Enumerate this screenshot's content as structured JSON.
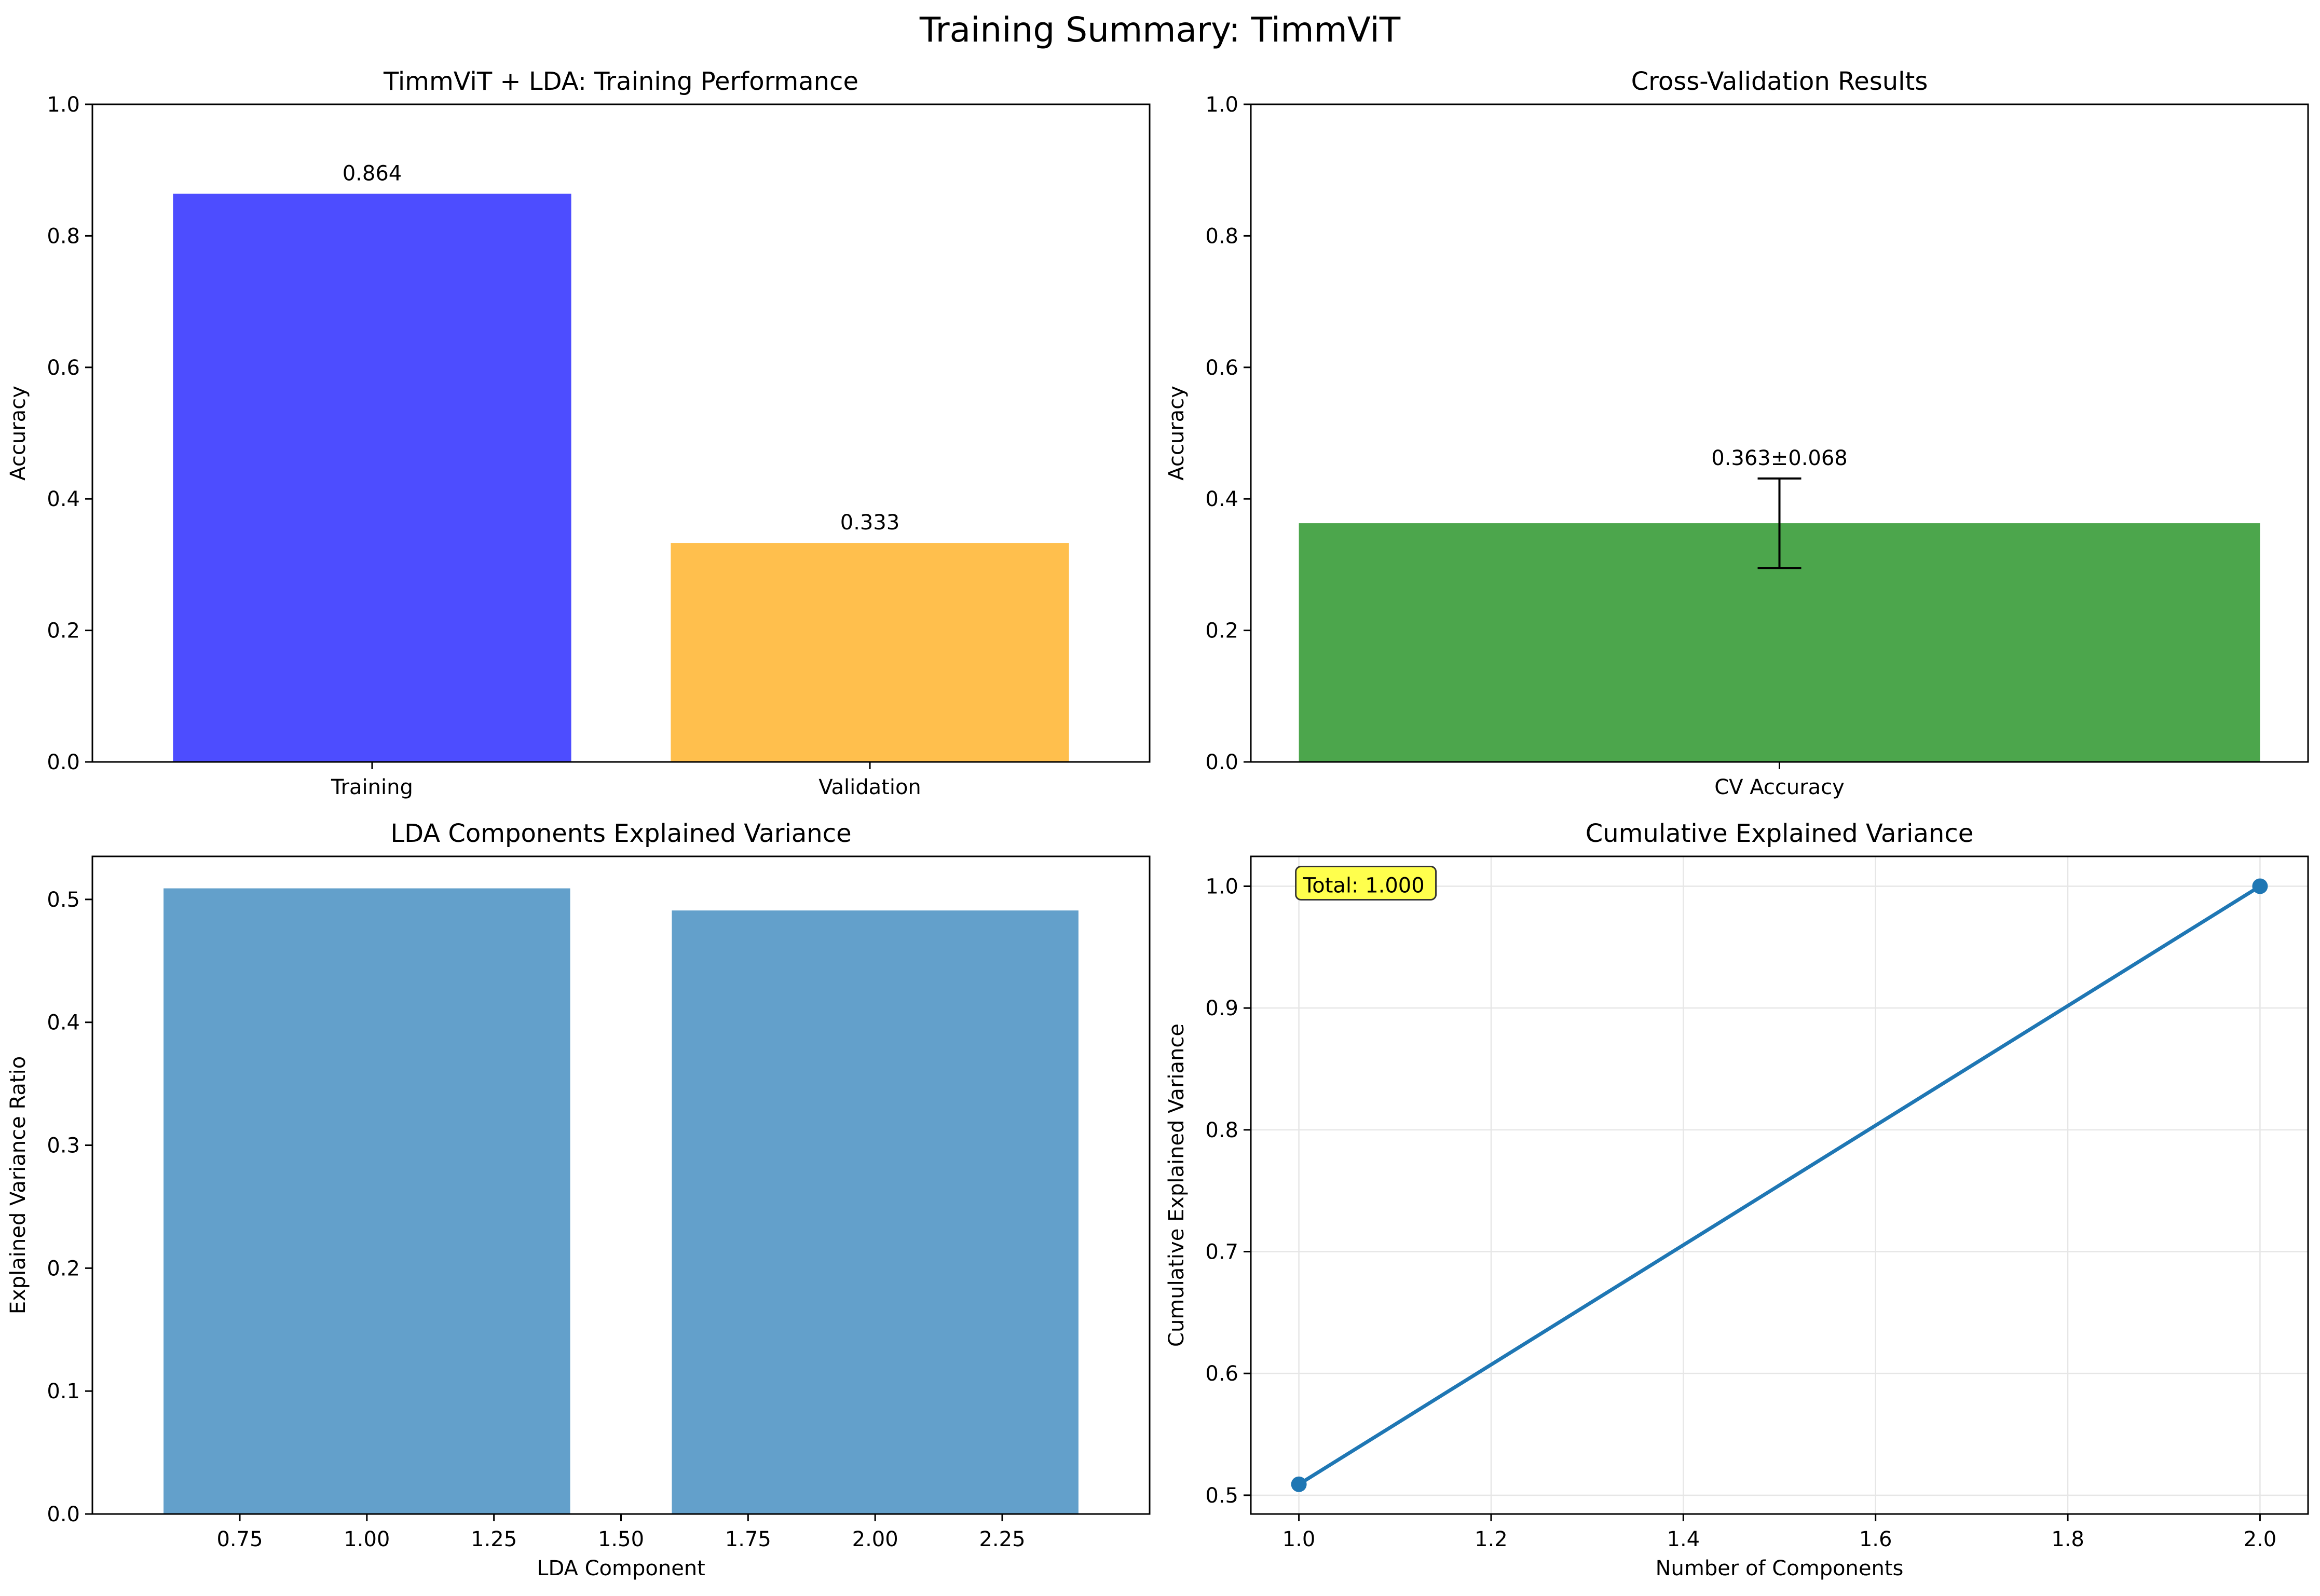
{
  "figure": {
    "title": "Training Summary: TimmViT"
  },
  "chart_data": [
    {
      "type": "bar",
      "title": "TimmViT + LDA: Training Performance",
      "xlabel": "",
      "ylabel": "Accuracy",
      "categories": [
        "Training",
        "Validation"
      ],
      "values": [
        0.864,
        0.333
      ],
      "colors": [
        "#4d4dff",
        "#ffbf4d"
      ],
      "data_labels": [
        "0.864",
        "0.333"
      ],
      "ylim": [
        0,
        1.0
      ],
      "yticks": [
        "0.0",
        "0.2",
        "0.4",
        "0.6",
        "0.8",
        "1.0"
      ],
      "grid": false
    },
    {
      "type": "bar",
      "title": "Cross-Validation Results",
      "xlabel": "",
      "ylabel": "Accuracy",
      "categories": [
        "CV Accuracy"
      ],
      "values": [
        0.363
      ],
      "error": [
        0.068
      ],
      "colors": [
        "#4ca64c"
      ],
      "data_labels": [
        "0.363±0.068"
      ],
      "ylim": [
        0,
        1.0
      ],
      "yticks": [
        "0.0",
        "0.2",
        "0.4",
        "0.6",
        "0.8",
        "1.0"
      ],
      "grid": false
    },
    {
      "type": "bar",
      "title": "LDA Components Explained Variance",
      "xlabel": "LDA Component",
      "ylabel": "Explained Variance Ratio",
      "x": [
        1,
        2
      ],
      "values": [
        0.509,
        0.491
      ],
      "colors": [
        "#63a0cb"
      ],
      "xlim": [
        0.46,
        2.54
      ],
      "ylim": [
        0,
        0.535
      ],
      "xticks": [
        "0.75",
        "1.00",
        "1.25",
        "1.50",
        "1.75",
        "2.00",
        "2.25"
      ],
      "yticks": [
        "0.0",
        "0.1",
        "0.2",
        "0.3",
        "0.4",
        "0.5"
      ],
      "grid": false
    },
    {
      "type": "line",
      "title": "Cumulative Explained Variance",
      "xlabel": "Number of Components",
      "ylabel": "Cumulative Explained Variance",
      "series": [
        {
          "x": [
            1,
            2
          ],
          "y": [
            0.509,
            1.0
          ],
          "color": "#1f77b4",
          "marker": "circle"
        }
      ],
      "annotation": "Total: 1.000",
      "xlim": [
        0.95,
        2.05
      ],
      "ylim": [
        0.4846,
        1.0245
      ],
      "xticks": [
        "1.0",
        "1.2",
        "1.4",
        "1.6",
        "1.8",
        "2.0"
      ],
      "yticks": [
        "0.5",
        "0.6",
        "0.7",
        "0.8",
        "0.9",
        "1.0"
      ],
      "grid": true
    }
  ]
}
